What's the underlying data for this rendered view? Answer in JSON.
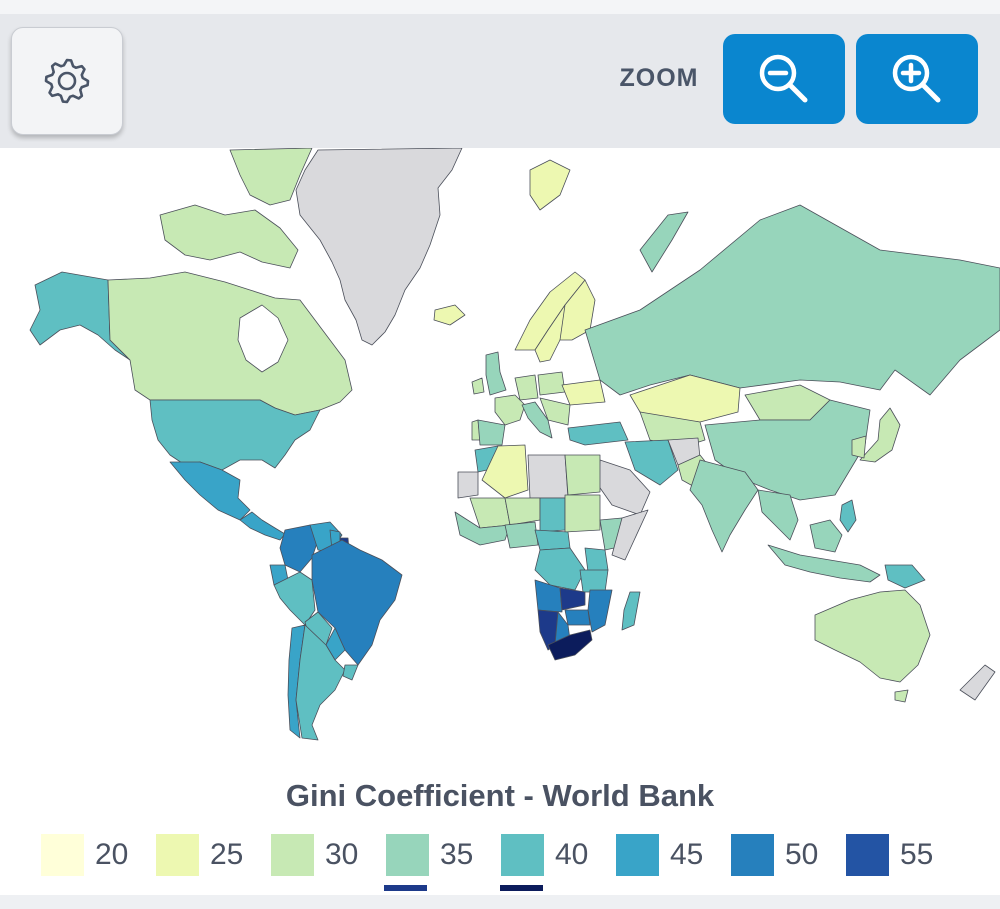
{
  "toolbar": {
    "settings_icon": "gear-icon",
    "zoom_label": "ZOOM",
    "zoom_out_icon": "zoom-out-icon",
    "zoom_in_icon": "zoom-in-icon",
    "button_color": "#0a86cf"
  },
  "map": {
    "title": "Gini Coefficient - World Bank",
    "no_data_color": "#d9d9dc",
    "country_values": {
      "Greenland": null,
      "Canada": 33,
      "Alaska": 41,
      "United States": 41,
      "Mexico": 45,
      "Central America": 48,
      "Colombia": 51,
      "Venezuela": 47,
      "Guyana": 45,
      "Suriname": 58,
      "Brazil": 53,
      "Peru": 43,
      "Ecuador": 45,
      "Bolivia": 42,
      "Paraguay": 46,
      "Chile": 45,
      "Argentina": 41,
      "Uruguay": 40,
      "Iceland": 27,
      "Norway": 27,
      "Sweden": 29,
      "Finland": 27,
      "United Kingdom": 35,
      "Ireland": 32,
      "France": 32,
      "Spain": 35,
      "Portugal": 34,
      "Germany": 31,
      "Italy": 35,
      "Poland": 30,
      "Ukraine": 26,
      "Turkey": 41,
      "Russia": 37,
      "Kazakhstan": 27,
      "Mongolia": 32,
      "China": 38,
      "India": 35,
      "Iran": 41,
      "Pakistan": 31,
      "Saudi Arabia": null,
      "Japan": 33,
      "Indonesia": 38,
      "Philippines": 44,
      "Papua New Guinea": 42,
      "Australia": 34,
      "New Zealand": null,
      "Morocco": 40,
      "Algeria": 28,
      "Libya": null,
      "Egypt": 32,
      "Mali": 33,
      "Niger": 34,
      "Chad": 43,
      "Sudan": 34,
      "Ethiopia": 35,
      "Somalia": null,
      "Nigeria": 35,
      "Congo DR": 42,
      "Angola": 51,
      "Zambia": 57,
      "Tanzania": 40,
      "Kenya": 41,
      "Mozambique": 54,
      "Madagascar": 43,
      "Namibia": 59,
      "Botswana": 53,
      "Zimbabwe": 50,
      "South Africa": 63
    }
  },
  "legend": {
    "items": [
      {
        "label": "20",
        "color": "#ffffd9"
      },
      {
        "label": "25",
        "color": "#edf8b1"
      },
      {
        "label": "30",
        "color": "#c7e9b4"
      },
      {
        "label": "35",
        "color": "#97d5bb"
      },
      {
        "label": "40",
        "color": "#5fbfc2"
      },
      {
        "label": "45",
        "color": "#39a4c8"
      },
      {
        "label": "50",
        "color": "#2680bd"
      },
      {
        "label": "55",
        "color": "#2354a4"
      }
    ],
    "extra_colors": [
      "#1d3a8a",
      "#0c1c5c"
    ]
  }
}
